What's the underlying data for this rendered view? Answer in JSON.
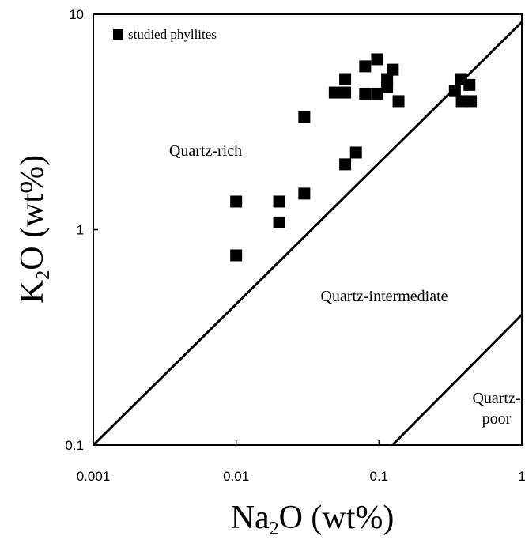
{
  "chart_data": {
    "type": "scatter",
    "x_label": {
      "main": "Na",
      "sub": "2",
      "rest": "O (wt%)"
    },
    "y_label": {
      "main": "K",
      "sub": "2",
      "rest": "O (wt%)"
    },
    "xlog": true,
    "ylog": true,
    "xlim": [
      0.001,
      1
    ],
    "ylim": [
      0.1,
      10
    ],
    "xticks": [
      0.001,
      0.01,
      0.1,
      1
    ],
    "yticks": [
      0.1,
      1,
      10
    ],
    "legend": "upper left",
    "series": [
      {
        "name": "studied phyllites",
        "color": "#000000",
        "x": [
          0.01,
          0.01,
          0.02,
          0.02,
          0.03,
          0.03,
          0.058,
          0.069,
          0.049,
          0.058,
          0.058,
          0.08,
          0.097,
          0.114,
          0.125,
          0.137,
          0.08,
          0.097,
          0.114,
          0.376,
          0.34,
          0.43,
          0.44,
          0.38
        ],
        "values": [
          1.35,
          0.76,
          1.35,
          1.08,
          1.47,
          3.33,
          2.01,
          2.28,
          4.33,
          4.33,
          5.0,
          5.73,
          6.18,
          5.0,
          5.53,
          3.95,
          4.28,
          4.28,
          4.6,
          5.0,
          4.4,
          4.7,
          3.95,
          3.95
        ]
      }
    ],
    "lines": [
      {
        "x": [
          0.001,
          1
        ],
        "y": [
          0.1,
          9.2
        ]
      },
      {
        "x": [
          0.124,
          1
        ],
        "y": [
          0.1,
          0.403
        ]
      }
    ],
    "annotations": [
      [
        "Quartz-rich"
      ],
      [
        "Quartz-intermediate"
      ],
      [
        "Quartz-",
        "poor"
      ]
    ]
  }
}
